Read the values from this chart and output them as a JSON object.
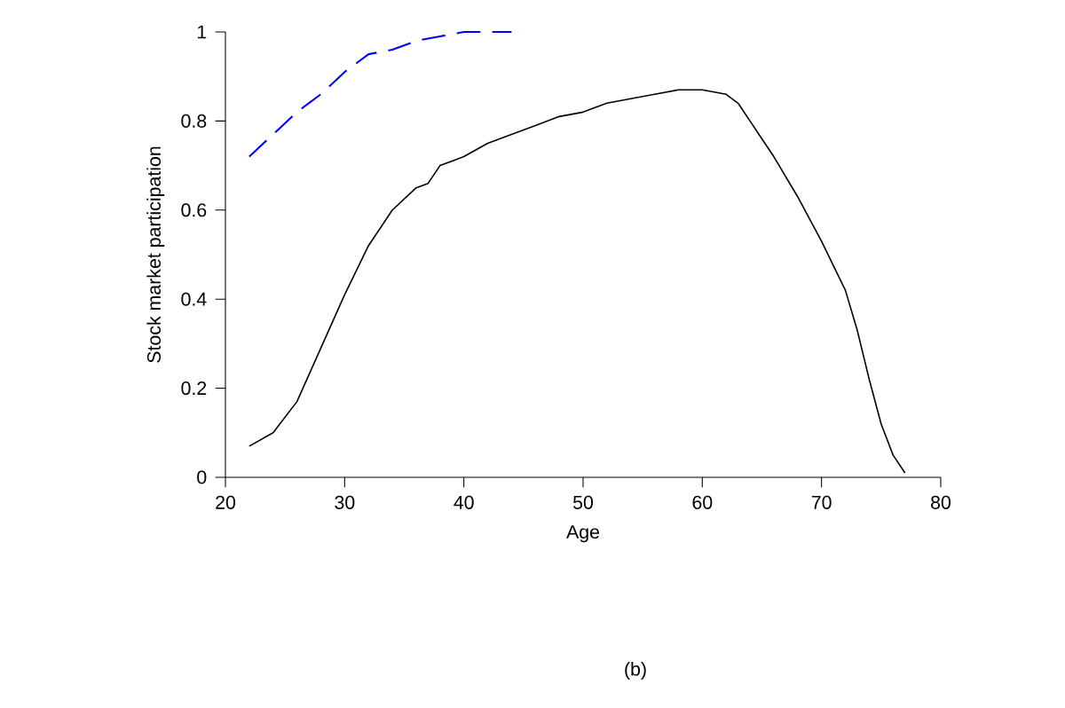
{
  "chart_data": {
    "type": "line",
    "xlabel": "Age",
    "ylabel": "Stock market participation",
    "annotations": [
      "(b)"
    ],
    "xlim": [
      20,
      80
    ],
    "ylim": [
      0,
      1
    ],
    "xticks": [
      20,
      30,
      40,
      50,
      60,
      70,
      80
    ],
    "yticks": [
      0,
      0.2,
      0.4,
      0.6,
      0.8,
      1
    ],
    "grid": false,
    "series": [
      {
        "color": "#0000ff",
        "line_style": "dashed",
        "x": [
          22,
          24,
          26,
          28,
          30,
          32,
          34,
          36,
          38,
          40,
          42,
          44
        ],
        "values": [
          0.72,
          0.77,
          0.82,
          0.86,
          0.91,
          0.95,
          0.96,
          0.98,
          0.99,
          1.0,
          1.0,
          1.0
        ]
      },
      {
        "color": "#000000",
        "line_style": "solid",
        "x": [
          22,
          24,
          26,
          28,
          30,
          32,
          34,
          36,
          37,
          38,
          40,
          42,
          44,
          46,
          48,
          50,
          52,
          54,
          56,
          58,
          60,
          62,
          63,
          64,
          65,
          66,
          68,
          70,
          72,
          73,
          74,
          75,
          76,
          77
        ],
        "values": [
          0.07,
          0.1,
          0.17,
          0.29,
          0.41,
          0.52,
          0.6,
          0.65,
          0.66,
          0.7,
          0.72,
          0.75,
          0.77,
          0.79,
          0.81,
          0.82,
          0.84,
          0.85,
          0.86,
          0.87,
          0.87,
          0.86,
          0.84,
          0.8,
          0.76,
          0.72,
          0.63,
          0.53,
          0.42,
          0.33,
          0.22,
          0.12,
          0.05,
          0.01
        ]
      }
    ]
  }
}
